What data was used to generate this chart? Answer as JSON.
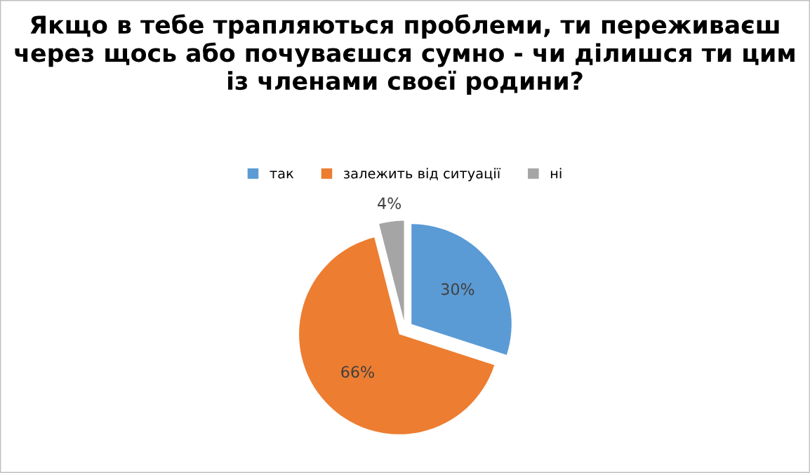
{
  "chart_data": {
    "type": "pie",
    "title": "Якщо в тебе трапляються проблеми, ти переживаєш через щось або почуваєшся сумно - чи ділишся ти цим із членами своєї родини?",
    "categories": [
      "так",
      "залежить від ситуації",
      "ні"
    ],
    "values": [
      30,
      66,
      4
    ],
    "colors": [
      "#5b9bd5",
      "#ed7d31",
      "#a5a5a5"
    ],
    "value_labels": [
      "30%",
      "66%",
      "4%"
    ],
    "legend": "top"
  }
}
